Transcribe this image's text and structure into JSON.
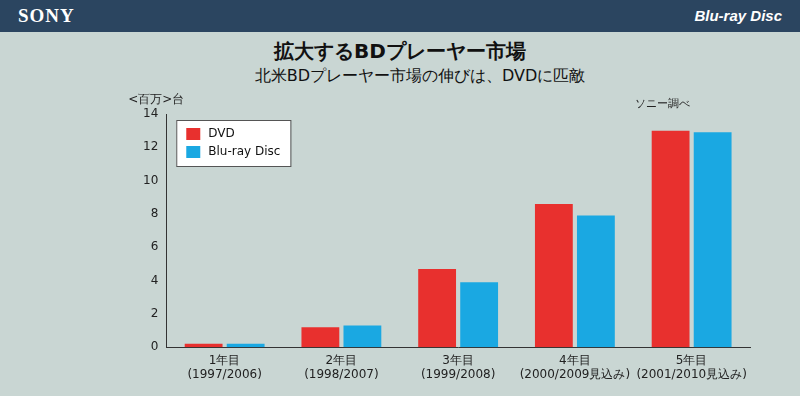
{
  "header": {
    "brand": "SONY",
    "logo": "Blu-ray Disc"
  },
  "chart_data": {
    "type": "bar",
    "title": "拡大するBDプレーヤー市場",
    "subtitle": "北米BDプレーヤー市場の伸びは、DVDに匹敵",
    "y_label": "<百万>台",
    "note": "ソニー調べ",
    "categories": [
      [
        "1年目",
        "(1997/2006)"
      ],
      [
        "2年目",
        "(1998/2007)"
      ],
      [
        "3年目",
        "(1999/2008)"
      ],
      [
        "4年目",
        "(2000/2009見込み)"
      ],
      [
        "5年目",
        "(2001/2010見込み)"
      ]
    ],
    "series": [
      {
        "name": "DVD",
        "color": "#e8302e",
        "values": [
          0.2,
          1.2,
          4.7,
          8.6,
          13.0
        ]
      },
      {
        "name": "Blu-ray Disc",
        "color": "#1aa8e2",
        "values": [
          0.2,
          1.3,
          3.9,
          7.9,
          12.9
        ]
      }
    ],
    "ylim": [
      0,
      14
    ],
    "yticks": [
      0,
      2,
      4,
      6,
      8,
      10,
      12,
      14
    ],
    "grid": false,
    "legend": "upper left"
  }
}
